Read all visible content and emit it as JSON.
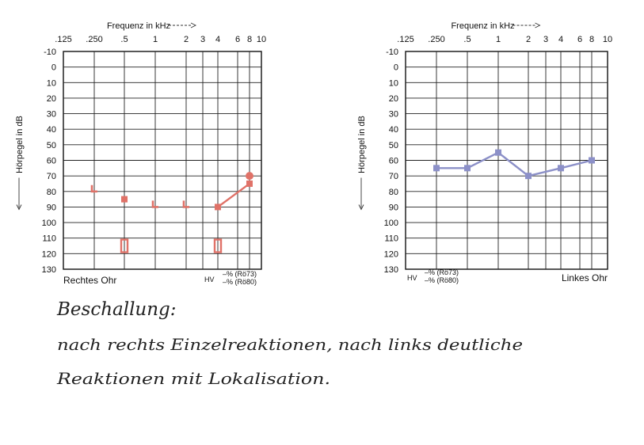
{
  "chart_data": [
    {
      "type": "line",
      "side": "right",
      "title": "Frequenz in kHz",
      "xlabel": "Frequenz in kHz",
      "ylabel": "Hörpegel in dB",
      "ear_label": "Rechtes Ohr",
      "x_ticks": [
        ".125",
        ".250",
        ".5",
        "1",
        "2",
        "3",
        "4",
        "6",
        "8",
        "10"
      ],
      "y_ticks": [
        "-10",
        "0",
        "10",
        "20",
        "30",
        "40",
        "50",
        "60",
        "70",
        "80",
        "90",
        "100",
        "110",
        "120",
        "130"
      ],
      "ylim": [
        -10,
        130
      ],
      "y_inverted": true,
      "grid": true,
      "legend": {
        "hv": "HV",
        "line1": "–% (Rö73)",
        "line2": "–% (Rö80)"
      },
      "color": "#e07268",
      "series": [
        {
          "marker": "bone-bracket",
          "points": [
            {
              "x": ".250",
              "y": 80
            },
            {
              "x": "1",
              "y": 90
            },
            {
              "x": "2",
              "y": 90
            }
          ],
          "connected": false
        },
        {
          "marker": "square",
          "points": [
            {
              "x": ".5",
              "y": 85
            }
          ],
          "connected": false
        },
        {
          "marker": "square",
          "points": [
            {
              "x": "4",
              "y": 90
            },
            {
              "x": "8",
              "y": 75
            }
          ],
          "connected": true
        },
        {
          "marker": "circle",
          "points": [
            {
              "x": "8",
              "y": 70
            }
          ],
          "connected": false
        },
        {
          "marker": "open-rect",
          "points": [
            {
              "x": ".5",
              "y": 115
            },
            {
              "x": "4",
              "y": 115
            }
          ],
          "connected": false
        }
      ]
    },
    {
      "type": "line",
      "side": "left",
      "title": "Frequenz in kHz",
      "xlabel": "Frequenz in kHz",
      "ylabel": "Hörpegel in dB",
      "ear_label": "Linkes Ohr",
      "x_ticks": [
        ".125",
        ".250",
        ".5",
        "1",
        "2",
        "3",
        "4",
        "6",
        "8",
        "10"
      ],
      "y_ticks": [
        "-10",
        "0",
        "10",
        "20",
        "30",
        "40",
        "50",
        "60",
        "70",
        "80",
        "90",
        "100",
        "110",
        "120",
        "130"
      ],
      "ylim": [
        -10,
        130
      ],
      "y_inverted": true,
      "grid": true,
      "legend": {
        "hv": "HV",
        "line1": "–% (Rö73)",
        "line2": "–% (Rö80)"
      },
      "color": "#8c90c8",
      "series": [
        {
          "marker": "square",
          "points": [
            {
              "x": ".250",
              "y": 65
            },
            {
              "x": ".5",
              "y": 65
            },
            {
              "x": "1",
              "y": 55
            },
            {
              "x": "2",
              "y": 70
            },
            {
              "x": "4",
              "y": 65
            },
            {
              "x": "8",
              "y": 60
            }
          ],
          "connected": true
        }
      ]
    }
  ],
  "note": {
    "heading": "Beschallung:",
    "line1": "nach rechts Einzelreaktionen, nach links deutliche",
    "line2": "Reaktionen mit Lokalisation."
  }
}
